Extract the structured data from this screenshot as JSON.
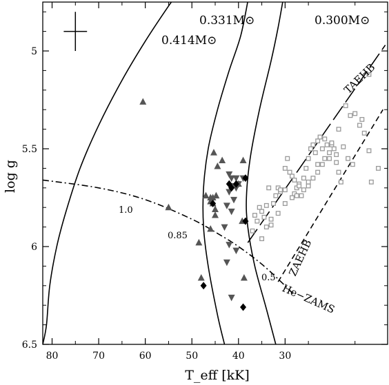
{
  "chart_data": {
    "type": "scatter",
    "xlabel": "T_eff [kK]",
    "ylabel": "log g",
    "xlim": [
      82,
      8
    ],
    "ylim": [
      6.5,
      4.75
    ],
    "x_reversed": true,
    "y_reversed": true,
    "xticks": [
      80,
      70,
      60,
      50,
      40,
      30
    ],
    "yticks": [
      5,
      5.5,
      6,
      6.5
    ],
    "xtick_labels": [
      "80",
      "70",
      "60",
      "50",
      "40",
      "30"
    ],
    "ytick_labels": [
      "5",
      "5.5",
      "6",
      "6.5"
    ],
    "tracks": [
      {
        "label": "0.414M⊙",
        "style": "solid",
        "points": [
          [
            82.0,
            6.5
          ],
          [
            81.2,
            6.4
          ],
          [
            80.5,
            6.2
          ],
          [
            79.0,
            6.0
          ],
          [
            77.0,
            5.82
          ],
          [
            74.0,
            5.6
          ],
          [
            70.0,
            5.38
          ],
          [
            65.0,
            5.15
          ],
          [
            60.0,
            4.95
          ],
          [
            55.0,
            4.77
          ],
          [
            53.4,
            4.72
          ]
        ]
      },
      {
        "label": "0.331M⊙",
        "style": "solid",
        "points": [
          [
            43.0,
            6.5
          ],
          [
            44.5,
            6.35
          ],
          [
            46.5,
            6.1
          ],
          [
            47.5,
            5.9
          ],
          [
            47.5,
            5.7
          ],
          [
            46.5,
            5.5
          ],
          [
            44.5,
            5.3
          ],
          [
            42.0,
            5.1
          ],
          [
            39.5,
            4.92
          ],
          [
            37.8,
            4.72
          ]
        ]
      },
      {
        "label": "0.300M⊙",
        "style": "solid",
        "points": [
          [
            32.0,
            6.5
          ],
          [
            34.0,
            6.32
          ],
          [
            36.5,
            6.1
          ],
          [
            38.0,
            5.9
          ],
          [
            38.3,
            5.75
          ],
          [
            37.5,
            5.55
          ],
          [
            35.5,
            5.3
          ],
          [
            33.0,
            5.05
          ],
          [
            31.5,
            4.88
          ],
          [
            30.3,
            4.72
          ]
        ]
      },
      {
        "label": "TAEHB",
        "style": "longdash",
        "points": [
          [
            38.0,
            5.98
          ],
          [
            8.5,
            4.97
          ]
        ]
      },
      {
        "label": "ZAEHB",
        "style": "dash",
        "points": [
          [
            31.5,
            6.18
          ],
          [
            9.0,
            5.3
          ]
        ]
      },
      {
        "label": "He−ZAMS",
        "style": "dashdot",
        "points": [
          [
            82.0,
            5.66
          ],
          [
            70.0,
            5.7
          ],
          [
            60.0,
            5.76
          ],
          [
            50.0,
            5.86
          ],
          [
            44.0,
            5.94
          ],
          [
            40.0,
            6.0
          ],
          [
            35.0,
            6.09
          ],
          [
            30.0,
            6.2
          ],
          [
            28.0,
            6.25
          ]
        ]
      }
    ],
    "mass_fraction_labels": [
      {
        "text": "1.0",
        "x": 58.0,
        "y": 5.8
      },
      {
        "text": "0.85",
        "x": 45.5,
        "y": 5.96
      },
      {
        "text": "0.5",
        "x": 32.5,
        "y": 6.25
      }
    ],
    "error_bar": {
      "x": 75.0,
      "y": 4.9,
      "x_err": 2.5,
      "y_err": 0.1
    },
    "series": [
      {
        "marker": "filled-triangle-up",
        "color": "#555555",
        "x": [
          60.5,
          55.0,
          48.5,
          48.0,
          47.0,
          46.0,
          46.0,
          45.5,
          45.0,
          45.0,
          44.8,
          45.3,
          44.5,
          46.0,
          45.5,
          43.5,
          39.0,
          40.0,
          39.2,
          38.8
        ],
        "y": [
          5.26,
          5.8,
          5.98,
          6.16,
          5.74,
          5.77,
          5.75,
          5.78,
          5.81,
          5.84,
          5.74,
          5.52,
          5.59,
          5.91,
          5.75,
          5.56,
          5.56,
          5.68,
          5.87,
          6.16
        ]
      },
      {
        "marker": "filled-triangle-down",
        "color": "#555555",
        "x": [
          42.0,
          41.5,
          40.5,
          40.0,
          41.5,
          41.0,
          42.0,
          42.5,
          41.5,
          43.0,
          42.5,
          39.0,
          40.5,
          41.5,
          42.0,
          40.5
        ],
        "y": [
          5.63,
          5.65,
          5.65,
          5.68,
          5.69,
          5.76,
          5.72,
          5.79,
          5.82,
          5.9,
          6.08,
          5.65,
          6.02,
          6.26,
          5.99,
          5.7
        ]
      },
      {
        "marker": "filled-diamond",
        "color": "#000000",
        "x": [
          45.5,
          42.0,
          41.5,
          40.5,
          38.5,
          38.5,
          47.5,
          39.0
        ],
        "y": [
          5.78,
          5.68,
          5.7,
          5.68,
          5.65,
          5.87,
          6.2,
          6.31
        ]
      },
      {
        "marker": "open-square",
        "color": "#999999",
        "x": [
          34.0,
          33.5,
          31.0,
          30.0,
          28.0,
          27.0,
          26.5,
          25.0,
          24.0,
          23.0,
          21.5,
          20.0,
          18.5,
          17.0,
          16.0,
          15.0,
          14.0,
          13.0,
          12.0,
          11.5,
          10.0,
          36.5,
          35.5,
          35.0,
          34.5,
          34.0,
          33.0,
          32.5,
          32.0,
          31.5,
          31.0,
          30.0,
          29.5,
          29.0,
          28.5,
          28.0,
          27.5,
          27.0,
          26.0,
          25.5,
          25.0,
          24.5,
          24.0,
          23.5,
          23.0,
          22.5,
          22.0,
          21.5,
          21.0,
          20.5,
          20.0,
          19.5,
          19.0,
          18.5,
          18.0,
          35.0,
          33.0,
          31.5,
          30.0,
          28.5,
          27.5,
          26.0,
          25.0,
          23.0,
          22.0,
          20.5,
          19.0,
          17.5,
          16.5,
          15.5,
          13.5,
          12.0,
          37.0,
          36.0
        ],
        "y": [
          5.79,
          5.7,
          5.72,
          5.71,
          5.73,
          5.68,
          5.74,
          5.69,
          5.65,
          5.58,
          5.55,
          5.48,
          5.4,
          5.28,
          5.33,
          5.32,
          5.38,
          5.42,
          5.51,
          5.67,
          5.6,
          5.84,
          5.8,
          5.82,
          5.85,
          5.9,
          5.86,
          5.78,
          5.74,
          5.7,
          5.71,
          5.6,
          5.55,
          5.62,
          5.64,
          5.66,
          5.7,
          5.69,
          5.65,
          5.6,
          5.55,
          5.5,
          5.48,
          5.52,
          5.46,
          5.44,
          5.5,
          5.45,
          5.48,
          5.52,
          5.47,
          5.5,
          5.57,
          5.62,
          5.67,
          5.96,
          5.89,
          5.83,
          5.78,
          5.75,
          5.74,
          5.71,
          5.67,
          5.62,
          5.58,
          5.55,
          5.53,
          5.49,
          5.55,
          5.58,
          5.35,
          5.12,
          5.92,
          5.87
        ]
      }
    ]
  }
}
